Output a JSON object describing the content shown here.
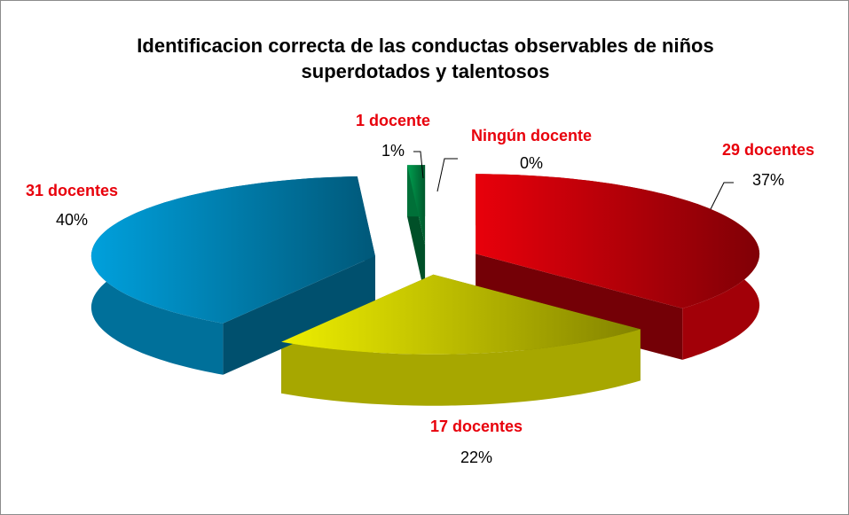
{
  "chart_data": {
    "type": "pie3d",
    "title": "Identificacion correcta de las conductas observables de niños superdotados y talentosos",
    "categories": [
      "Ningún docente",
      "29 docentes",
      "17 docentes",
      "31 docentes",
      "1 docente"
    ],
    "values": [
      0,
      37,
      22,
      40,
      1
    ],
    "value_labels": [
      "0%",
      "37%",
      "22%",
      "40%",
      "1%"
    ],
    "colors": [
      "#7f7f7f",
      "#e8000b",
      "#eeee00",
      "#00a0dc",
      "#00a050"
    ]
  }
}
